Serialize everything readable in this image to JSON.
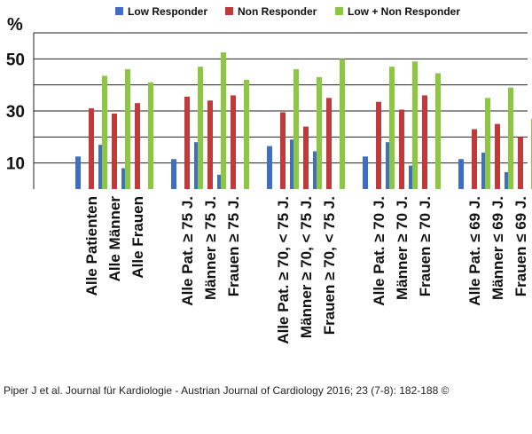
{
  "chart_data": {
    "type": "bar",
    "unit_label": "%",
    "legend_position": "top",
    "ylim": [
      0,
      60
    ],
    "yticks": [
      10,
      30,
      50
    ],
    "grid": true,
    "categories": [
      "Alle Patienten",
      "Alle Männer",
      "Alle Frauen",
      "Alle Pat. ≥ 75 J.",
      "Männer ≥ 75 J.",
      "Frauen ≥ 75 J.",
      "Alle Pat. ≥ 70, < 75 J.",
      "Männer ≥ 70, < 75 J.",
      "Frauen ≥ 70, < 75 J.",
      "Alle Pat. ≥ 70 J.",
      "Männer ≥ 70 J.",
      "Frauen ≥ 70 J.",
      "Alle Pat. ≤ 69 J.",
      "Männer ≤ 69 J.",
      "Frauen ≤ 69 J."
    ],
    "groups": [
      [
        0,
        1,
        2
      ],
      [
        3,
        4,
        5
      ],
      [
        6,
        7,
        8
      ],
      [
        9,
        10,
        11
      ],
      [
        12,
        13,
        14
      ]
    ],
    "series": [
      {
        "name": "Low Responder",
        "color": "#3f6fc4",
        "values": [
          12.5,
          17,
          8,
          11.5,
          18,
          5.5,
          16.5,
          19,
          14.5,
          12.5,
          18,
          9,
          11.5,
          14,
          6.5
        ]
      },
      {
        "name": "Non Responder",
        "color": "#c0393b",
        "values": [
          31,
          29,
          33,
          35.5,
          34,
          36,
          29.5,
          24,
          35,
          33.5,
          30.5,
          36,
          23,
          25,
          20
        ]
      },
      {
        "name": "Low + Non Responder",
        "color": "#8dc63f",
        "values": [
          43.5,
          46,
          41,
          47,
          52.5,
          42,
          46,
          43,
          50,
          47,
          49,
          44.5,
          35,
          39,
          27
        ]
      }
    ]
  },
  "credit": "Piper J et al. Journal für Kardiologie - Austrian Journal of Cardiology 2016; 23 (7-8): 182-188 ©"
}
